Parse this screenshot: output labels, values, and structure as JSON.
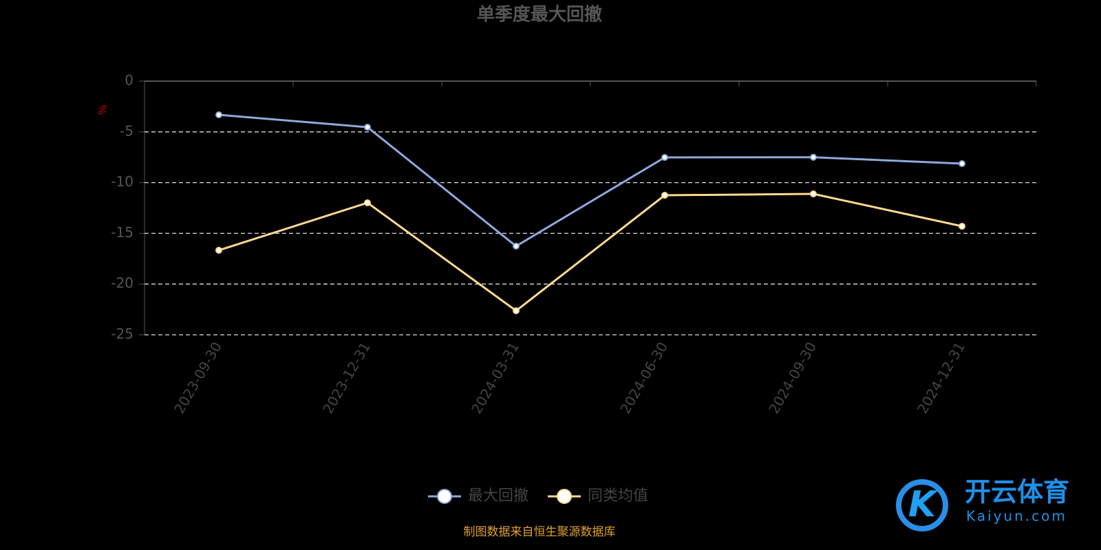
{
  "chart_data": {
    "type": "line",
    "title": "单季度最大回撤",
    "y_label": "%",
    "categories": [
      "2023-09-30",
      "2023-12-31",
      "2024-03-31",
      "2024-06-30",
      "2024-09-30",
      "2024-12-31"
    ],
    "series": [
      {
        "name": "最大回撤",
        "color": "#8fa9dc",
        "values": [
          -3.32,
          -4.54,
          -16.26,
          -7.52,
          -7.5,
          -8.13
        ]
      },
      {
        "name": "同类均值",
        "color": "#ffd98f",
        "values": [
          -16.67,
          -11.99,
          -22.63,
          -11.25,
          -11.11,
          -14.3
        ]
      }
    ],
    "ylim": [
      -25,
      0
    ],
    "yticks": [
      0,
      -5,
      -10,
      -15,
      -20,
      -25
    ],
    "grid": true,
    "legend": "bottom",
    "source": "制图数据来自恒生聚源数据库",
    "watermark": {
      "name": "开云体育",
      "url": "Kaiyun.com"
    }
  }
}
